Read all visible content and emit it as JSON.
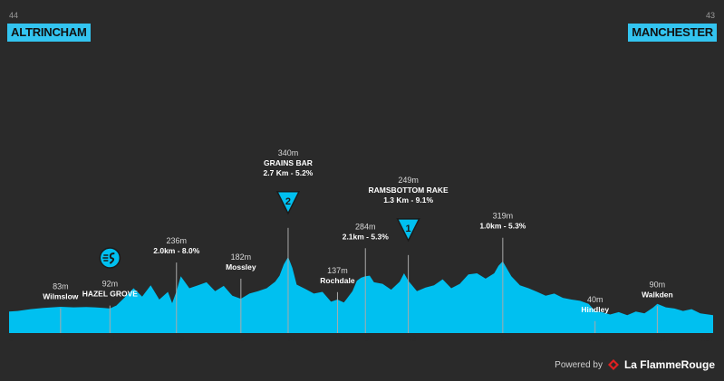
{
  "header": {
    "start": {
      "name": "ALTRINCHAM",
      "km_label": "44"
    },
    "finish": {
      "name": "MANCHESTER",
      "km_label": "43"
    }
  },
  "footer": {
    "powered_by": "Powered by",
    "brand": "La FlammeRouge"
  },
  "colors": {
    "fill": "#00c0f0",
    "background": "#2a2a2a",
    "tag": "#33c4f0"
  },
  "chart_data": {
    "type": "area",
    "xlim": [
      0,
      164
    ],
    "x_ticks": [
      "0",
      "12",
      "23.5",
      "39",
      "54",
      "65",
      "76.5",
      "83",
      "93",
      "115",
      "136.5",
      "151",
      "164"
    ],
    "profile_km": [
      0,
      2,
      5,
      8,
      10,
      12,
      15,
      18,
      20,
      22,
      23.5,
      25,
      27,
      29,
      31,
      33,
      35,
      37,
      38,
      39,
      40,
      42,
      44,
      46,
      48,
      50,
      52,
      54,
      56,
      58,
      60,
      62,
      63,
      64,
      65,
      66,
      67,
      69,
      71,
      73,
      75,
      76.5,
      78,
      80,
      81,
      82,
      83,
      84,
      85,
      87,
      89,
      91,
      92,
      93,
      95,
      97,
      99,
      101,
      103,
      105,
      107,
      109,
      111,
      113,
      114,
      115,
      117,
      119,
      121,
      123,
      125,
      127,
      129,
      131,
      133,
      135,
      136.5,
      138,
      140,
      142,
      144,
      146,
      148,
      150,
      151,
      153,
      155,
      157,
      159,
      161,
      164
    ],
    "profile_m": [
      72,
      74,
      80,
      84,
      86,
      88,
      86,
      87,
      86,
      84,
      82,
      92,
      120,
      150,
      122,
      160,
      112,
      138,
      100,
      140,
      190,
      150,
      160,
      170,
      140,
      158,
      125,
      115,
      132,
      140,
      150,
      172,
      192,
      230,
      255,
      218,
      162,
      148,
      132,
      138,
      105,
      112,
      102,
      140,
      175,
      185,
      190,
      192,
      170,
      165,
      145,
      172,
      200,
      175,
      140,
      152,
      160,
      180,
      150,
      165,
      196,
      200,
      182,
      200,
      225,
      240,
      190,
      160,
      150,
      138,
      125,
      132,
      118,
      112,
      108,
      98,
      74,
      70,
      62,
      70,
      60,
      72,
      66,
      85,
      98,
      86,
      82,
      74,
      80,
      66,
      60
    ],
    "annotations": [
      {
        "km": 12,
        "name": "Wilmslow",
        "value": "83m",
        "height": 83
      },
      {
        "km": 23.5,
        "name": "HAZEL GROVE",
        "value": "92m",
        "height": 92,
        "icon": "sprint"
      },
      {
        "km": 39,
        "name": "2.0km - 8.0%",
        "value": "236m",
        "height": 236
      },
      {
        "km": 54,
        "name": "Mossley",
        "value": "182m",
        "height": 182
      },
      {
        "km": 65,
        "name": "GRAINS BAR",
        "value": "340m",
        "detail": "2.7 Km - 5.2%",
        "height": 340,
        "climb": "2"
      },
      {
        "km": 76.5,
        "name": "Rochdale",
        "value": "137m",
        "height": 137
      },
      {
        "km": 83,
        "name": "2.1km - 5.3%",
        "value": "284m",
        "height": 284
      },
      {
        "km": 93,
        "name": "RAMSBOTTOM RAKE",
        "value": "249m",
        "detail": "1.3 Km - 9.1%",
        "height": 249,
        "climb": "1"
      },
      {
        "km": 115,
        "name": "1.0km - 5.3%",
        "value": "319m",
        "height": 319
      },
      {
        "km": 136.5,
        "name": "Hindley",
        "value": "40m",
        "height": 40
      },
      {
        "km": 151,
        "name": "Walkden",
        "value": "90m",
        "height": 90
      }
    ]
  }
}
